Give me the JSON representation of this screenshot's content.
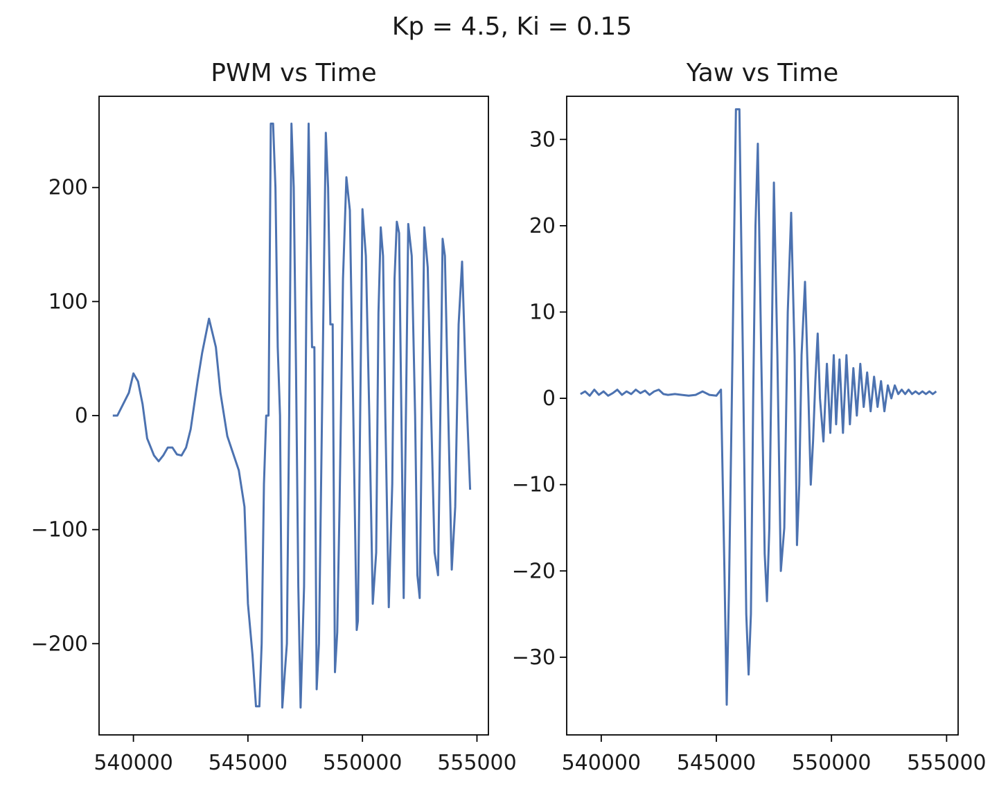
{
  "suptitle": "Kp = 4.5, Ki = 0.15",
  "line_color": "#4c72b0",
  "chart_data": [
    {
      "type": "line",
      "title": "PWM vs Time",
      "xlabel": "",
      "ylabel": "",
      "xlim": [
        538500,
        555500
      ],
      "ylim": [
        -280,
        280
      ],
      "xticks": [
        540000,
        545000,
        550000,
        555000
      ],
      "xtick_labels": [
        "540000",
        "545000",
        "550000",
        "555000"
      ],
      "yticks": [
        -200,
        -100,
        0,
        100,
        200
      ],
      "ytick_labels": [
        "−200",
        "−100",
        "0",
        "100",
        "200"
      ],
      "grid": false,
      "series": [
        {
          "x": [
            539100,
            539300,
            539600,
            539800,
            540000,
            540200,
            540400,
            540600,
            540900,
            541100,
            541300,
            541500,
            541700,
            541900,
            542100,
            542300,
            542500,
            542800,
            543000,
            543300,
            543600,
            543800,
            544100,
            544300,
            544600,
            544850,
            545000,
            545200,
            545350,
            545500,
            545600,
            545700,
            545800,
            545900,
            546000,
            546100,
            546200,
            546300,
            546400,
            546500,
            546700,
            546800,
            546900,
            547000,
            547100,
            547200,
            547300,
            547450,
            547550,
            547650,
            547700,
            547800,
            547900,
            548000,
            548100,
            548200,
            548300,
            548400,
            548500,
            548600,
            548700,
            548800,
            548900,
            549000,
            549150,
            549300,
            549450,
            549600,
            549750,
            549800,
            549900,
            550000,
            550150,
            550300,
            550450,
            550600,
            550700,
            550800,
            550900,
            551000,
            551150,
            551300,
            551400,
            551500,
            551600,
            551700,
            551800,
            552000,
            552150,
            552300,
            552400,
            552500,
            552600,
            552700,
            552850,
            553000,
            553150,
            553300,
            553400,
            553500,
            553600,
            553750,
            553900,
            554050,
            554200,
            554350,
            554500,
            554700
          ],
          "y": [
            0,
            0,
            12,
            20,
            37,
            30,
            10,
            -20,
            -35,
            -40,
            -35,
            -28,
            -28,
            -34,
            -35,
            -28,
            -12,
            30,
            55,
            85,
            60,
            20,
            -18,
            -30,
            -48,
            -80,
            -165,
            -210,
            -255,
            -255,
            -200,
            -60,
            0,
            0,
            256,
            256,
            200,
            60,
            0,
            -256,
            -200,
            0,
            256,
            200,
            40,
            -150,
            -256,
            -150,
            100,
            256,
            200,
            60,
            60,
            -240,
            -200,
            -50,
            100,
            248,
            200,
            80,
            80,
            -225,
            -190,
            -80,
            120,
            209,
            180,
            0,
            -188,
            -180,
            0,
            181,
            140,
            0,
            -165,
            -120,
            90,
            165,
            140,
            0,
            -168,
            -60,
            120,
            170,
            160,
            0,
            -160,
            168,
            140,
            0,
            -140,
            -160,
            0,
            165,
            130,
            0,
            -120,
            -140,
            0,
            155,
            140,
            0,
            -135,
            -80,
            80,
            135,
            40,
            -65
          ]
        }
      ]
    },
    {
      "type": "line",
      "title": "Yaw vs Time",
      "xlabel": "",
      "ylabel": "",
      "xlim": [
        538500,
        555500
      ],
      "ylim": [
        -39,
        35
      ],
      "xticks": [
        540000,
        545000,
        550000,
        555000
      ],
      "xtick_labels": [
        "540000",
        "545000",
        "550000",
        "555000"
      ],
      "yticks": [
        -30,
        -20,
        -10,
        0,
        10,
        20,
        30
      ],
      "ytick_labels": [
        "−30",
        "−20",
        "−10",
        "0",
        "10",
        "20",
        "30"
      ],
      "grid": false,
      "series": [
        {
          "x": [
            539100,
            539300,
            539500,
            539700,
            539900,
            540100,
            540300,
            540500,
            540700,
            540900,
            541100,
            541300,
            541500,
            541700,
            541900,
            542100,
            542300,
            542500,
            542700,
            542900,
            543200,
            543500,
            543800,
            544100,
            544400,
            544700,
            545000,
            545200,
            545350,
            545450,
            545550,
            545700,
            545850,
            546000,
            546150,
            546300,
            546400,
            546500,
            546600,
            546700,
            546800,
            546950,
            547100,
            547200,
            547300,
            547400,
            547500,
            547650,
            547800,
            547950,
            548100,
            548250,
            548400,
            548500,
            548600,
            548700,
            548850,
            549000,
            549100,
            549200,
            549300,
            549400,
            549500,
            549650,
            549800,
            549950,
            550100,
            550200,
            550350,
            550500,
            550650,
            550800,
            550950,
            551100,
            551250,
            551400,
            551550,
            551700,
            551850,
            552000,
            552150,
            552300,
            552450,
            552600,
            552750,
            552900,
            553050,
            553200,
            553350,
            553500,
            553650,
            553800,
            553950,
            554100,
            554250,
            554400,
            554550
          ],
          "y": [
            0.5,
            0.8,
            0.3,
            1.0,
            0.4,
            0.8,
            0.3,
            0.6,
            1.0,
            0.4,
            0.8,
            0.5,
            1.0,
            0.6,
            0.9,
            0.4,
            0.8,
            1.0,
            0.5,
            0.4,
            0.5,
            0.4,
            0.3,
            0.4,
            0.8,
            0.4,
            0.3,
            1.0,
            -20,
            -35.5,
            -22,
            5,
            33.5,
            33.5,
            5,
            -25,
            -32,
            -25,
            0,
            20,
            29.5,
            5,
            -18,
            -23.5,
            -15,
            5,
            25,
            5,
            -20,
            -15,
            10,
            21.5,
            5,
            -17,
            -10,
            5,
            13.5,
            0,
            -10,
            -5,
            2,
            7.5,
            0,
            -5,
            4,
            -4,
            5,
            -3,
            4.5,
            -4,
            5,
            -3,
            3.5,
            -2,
            4,
            -1,
            3,
            -1.5,
            2.5,
            -1,
            2,
            -1.5,
            1.5,
            0,
            1.5,
            0.5,
            1.0,
            0.5,
            1.0,
            0.5,
            0.8,
            0.5,
            0.8,
            0.5,
            0.8,
            0.5,
            0.8
          ]
        }
      ]
    }
  ]
}
